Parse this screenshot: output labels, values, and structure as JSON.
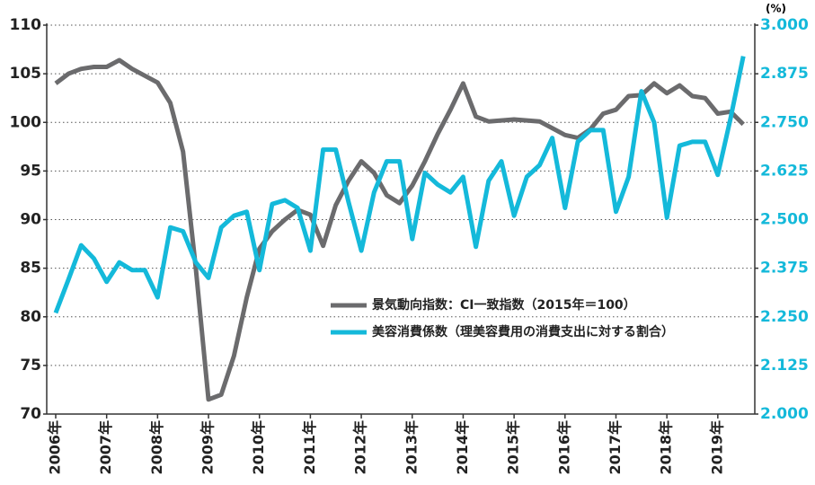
{
  "chart_data": {
    "type": "line",
    "categories": [
      "2006年",
      null,
      null,
      null,
      "2007年",
      null,
      null,
      null,
      "2008年",
      null,
      null,
      null,
      "2009年",
      null,
      null,
      null,
      "2010年",
      null,
      null,
      null,
      "2011年",
      null,
      null,
      null,
      "2012年",
      null,
      null,
      null,
      "2013年",
      null,
      null,
      null,
      "2014年",
      null,
      null,
      null,
      "2015年",
      null,
      null,
      null,
      "2016年",
      null,
      null,
      null,
      "2017年",
      null,
      null,
      null,
      "2018年",
      null,
      null,
      null,
      "2019年",
      null,
      null
    ],
    "series": [
      {
        "name": "景気動向指数：CI一致指数（2015年＝100）",
        "color": "#6b6b6d",
        "values": [
          104,
          105,
          105.5,
          105.7,
          105.7,
          106.4,
          105.5,
          104.8,
          104.1,
          102,
          97,
          85,
          71.5,
          72,
          76,
          82,
          87,
          88.8,
          90,
          91,
          90.5,
          87.3,
          91.5,
          94,
          96,
          94.8,
          92.5,
          91.7,
          93.5,
          96,
          98.8,
          101.3,
          104,
          100.6,
          100.1,
          100.2,
          100.3,
          100.2,
          100.1,
          99.4,
          98.7,
          98.4,
          99.3,
          100.9,
          101.3,
          102.7,
          102.8,
          104,
          103,
          103.8,
          102.7,
          102.5,
          100.9,
          101.1,
          99.8
        ]
      },
      {
        "name": "美容消費係数（理美容費用の消費支出に対する割合）",
        "color": "#14b9da",
        "axis": "y2",
        "values": [
          2.26,
          2.346,
          2.434,
          2.4,
          2.34,
          2.39,
          2.37,
          2.37,
          2.3,
          2.48,
          2.47,
          2.39,
          2.35,
          2.48,
          2.51,
          2.52,
          2.37,
          2.54,
          2.55,
          2.53,
          2.42,
          2.68,
          2.68,
          2.545,
          2.42,
          2.57,
          2.65,
          2.65,
          2.45,
          2.62,
          2.59,
          2.57,
          2.61,
          2.43,
          2.6,
          2.65,
          2.51,
          2.61,
          2.64,
          2.71,
          2.53,
          2.7,
          2.73,
          2.73,
          2.52,
          2.61,
          2.83,
          2.75,
          2.505,
          2.69,
          2.7,
          2.7,
          2.615,
          2.76,
          2.92
        ]
      }
    ],
    "ylim": [
      70,
      110
    ],
    "yticks": [
      70,
      75,
      80,
      85,
      90,
      95,
      100,
      105,
      110
    ],
    "y2lim": [
      2.0,
      3.0
    ],
    "y2ticks": [
      {
        "value": 2.0,
        "label": "2.000"
      },
      {
        "value": 2.125,
        "label": "2.125"
      },
      {
        "value": 2.25,
        "label": "2.250"
      },
      {
        "value": 2.375,
        "label": "2.375"
      },
      {
        "value": 2.5,
        "label": "2.500"
      },
      {
        "value": 2.625,
        "label": "2.625"
      },
      {
        "value": 2.75,
        "label": "2.750"
      },
      {
        "value": 2.875,
        "label": "2.875"
      },
      {
        "value": 3.0,
        "label": "3.000"
      }
    ],
    "y2_unit": "(%)",
    "grid": true
  }
}
